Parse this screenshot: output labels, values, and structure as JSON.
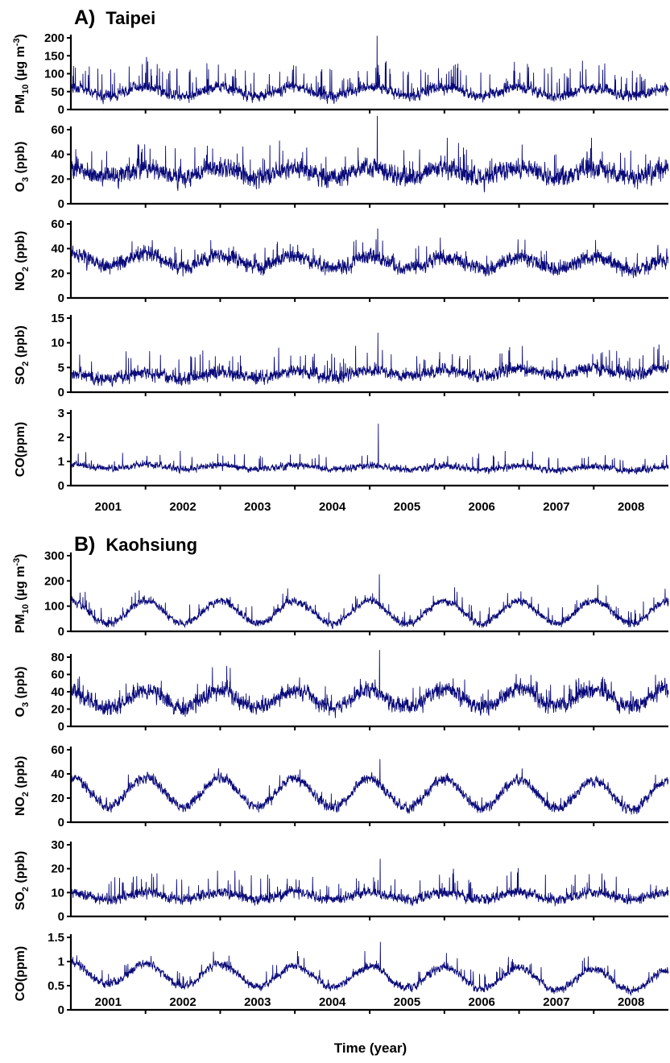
{
  "figure": {
    "x_axis_title": "Time (year)",
    "line_color": "#0a0a7a"
  },
  "chart_data": [
    {
      "type": "line",
      "panel": "A) Taipei",
      "panel_letter": "A)",
      "city": "Taipei",
      "x_tick_labels": [
        "2001",
        "2002",
        "2003",
        "2004",
        "2005",
        "2006",
        "2007",
        "2008"
      ],
      "x_range": [
        "2001-01-01",
        "2008-12-31"
      ],
      "resolution": "daily",
      "grid": false,
      "legend": "none",
      "subplots": [
        {
          "pollutant": "PM10",
          "ylabel_main": "PM",
          "ylabel_sub": "10",
          "ylabel_rest": " (µg m",
          "ylabel_sup": "-3",
          "ylabel_end": ")",
          "yticks": [
            0,
            50,
            100,
            150,
            200
          ],
          "ylim": [
            0,
            200
          ],
          "mean": 50,
          "seasonal_amp": 12,
          "noise": 18,
          "spike_prob": 0.05,
          "spike": 50,
          "max_peak": 205,
          "trend": 0
        },
        {
          "pollutant": "O3",
          "ylabel_main": "O",
          "ylabel_sub": "3",
          "ylabel_rest": " (ppb)",
          "yticks": [
            0,
            20,
            40,
            60
          ],
          "ylim": [
            0,
            60
          ],
          "mean": 25,
          "seasonal_amp": 4,
          "noise": 9,
          "spike_prob": 0.03,
          "spike": 15,
          "max_peak": 71,
          "trend": 0
        },
        {
          "pollutant": "NO2",
          "ylabel_main": "NO",
          "ylabel_sub": "2",
          "ylabel_rest": " (ppb)",
          "yticks": [
            0,
            20,
            40,
            60
          ],
          "ylim": [
            0,
            60
          ],
          "mean": 29,
          "seasonal_amp": 5,
          "noise": 7,
          "spike_prob": 0.02,
          "spike": 10,
          "max_peak": 56,
          "trend": -4
        },
        {
          "pollutant": "SO2",
          "ylabel_main": "SO",
          "ylabel_sub": "2",
          "ylabel_rest": " (ppb)",
          "yticks": [
            0,
            5,
            10,
            15
          ],
          "ylim": [
            0,
            15
          ],
          "mean": 3.8,
          "seasonal_amp": 0.6,
          "noise": 1.5,
          "spike_prob": 0.03,
          "spike": 3,
          "max_peak": 12,
          "trend": 1.2
        },
        {
          "pollutant": "CO",
          "ylabel_main": "CO(ppm)",
          "yticks": [
            0,
            1,
            2,
            3
          ],
          "ylim": [
            0,
            3
          ],
          "mean": 0.75,
          "seasonal_amp": 0.08,
          "noise": 0.17,
          "spike_prob": 0.02,
          "spike": 0.4,
          "max_peak": 2.55,
          "trend": -0.1
        }
      ]
    },
    {
      "type": "line",
      "panel": "B) Kaohsiung",
      "panel_letter": "B)",
      "city": "Kaohsiung",
      "x_tick_labels": [
        "2001",
        "2002",
        "2003",
        "2004",
        "2005",
        "2006",
        "2007",
        "2008"
      ],
      "x_range": [
        "2001-01-01",
        "2008-12-31"
      ],
      "resolution": "daily",
      "grid": false,
      "legend": "none",
      "subplots": [
        {
          "pollutant": "PM10",
          "ylabel_main": "PM",
          "ylabel_sub": "10",
          "ylabel_rest": " (µg m",
          "ylabel_sup": "-3",
          "ylabel_end": ")",
          "yticks": [
            0,
            100,
            200,
            300
          ],
          "ylim": [
            0,
            300
          ],
          "mean": 75,
          "seasonal_amp": 45,
          "noise": 18,
          "spike_prob": 0.03,
          "spike": 40,
          "max_peak": 225,
          "trend": 0
        },
        {
          "pollutant": "O3",
          "ylabel_main": "O",
          "ylabel_sub": "3",
          "ylabel_rest": " (ppb)",
          "yticks": [
            0,
            20,
            40,
            60,
            80
          ],
          "ylim": [
            0,
            80
          ],
          "mean": 32,
          "seasonal_amp": 10,
          "noise": 11,
          "spike_prob": 0.03,
          "spike": 15,
          "max_peak": 88,
          "trend": 3
        },
        {
          "pollutant": "NO2",
          "ylabel_main": "NO",
          "ylabel_sub": "2",
          "ylabel_rest": " (ppb)",
          "yticks": [
            0,
            20,
            40,
            60
          ],
          "ylim": [
            0,
            60
          ],
          "mean": 24,
          "seasonal_amp": 12,
          "noise": 5,
          "spike_prob": 0.01,
          "spike": 8,
          "max_peak": 52,
          "trend": -3
        },
        {
          "pollutant": "SO2",
          "ylabel_main": "SO",
          "ylabel_sub": "2",
          "ylabel_rest": " (ppb)",
          "yticks": [
            0,
            10,
            20,
            30
          ],
          "ylim": [
            0,
            30
          ],
          "mean": 8.5,
          "seasonal_amp": 1.5,
          "noise": 2.5,
          "spike_prob": 0.03,
          "spike": 6,
          "max_peak": 24,
          "trend": 0
        },
        {
          "pollutant": "CO",
          "ylabel_main": "CO(ppm)",
          "yticks": [
            0,
            0.5,
            1,
            1.5
          ],
          "ylim": [
            0,
            1.5
          ],
          "ytick_labels": [
            "0",
            "0.5",
            "1",
            "1.5"
          ],
          "mean": 0.68,
          "seasonal_amp": 0.22,
          "noise": 0.1,
          "spike_prob": 0.02,
          "spike": 0.2,
          "max_peak": 1.4,
          "trend": -0.15
        }
      ]
    }
  ]
}
